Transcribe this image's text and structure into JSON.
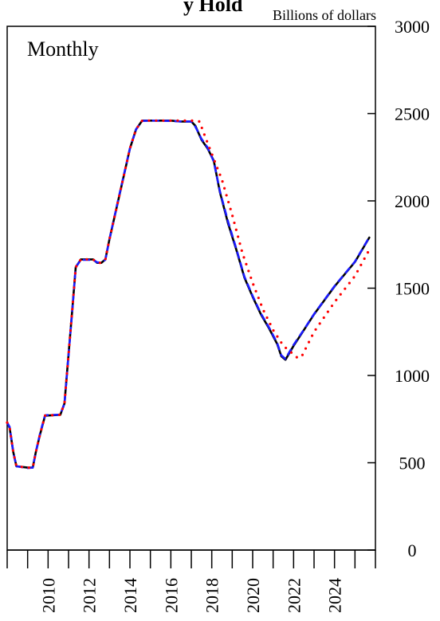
{
  "chart_data": {
    "type": "line",
    "title": "y Hold",
    "period_label": "Monthly",
    "y_unit_label": "Billions of dollars",
    "ylim": [
      0,
      3000
    ],
    "y_ticks": [
      0,
      500,
      1000,
      1500,
      2000,
      2500,
      3000
    ],
    "xlim": [
      2008.0,
      2026.0
    ],
    "x_tick_labels": [
      "2010",
      "2012",
      "2014",
      "2016",
      "2018",
      "2020",
      "2022",
      "2024"
    ],
    "grid": false,
    "series": [
      {
        "color": "#000000",
        "style": "solid",
        "points": [
          [
            2008.0,
            730
          ],
          [
            2008.12,
            700
          ],
          [
            2008.3,
            560
          ],
          [
            2008.45,
            480
          ],
          [
            2009.0,
            472
          ],
          [
            2009.25,
            472
          ],
          [
            2009.4,
            560
          ],
          [
            2009.6,
            660
          ],
          [
            2009.85,
            770
          ],
          [
            2010.6,
            775
          ],
          [
            2010.8,
            840
          ],
          [
            2010.95,
            1050
          ],
          [
            2011.2,
            1400
          ],
          [
            2011.35,
            1620
          ],
          [
            2011.6,
            1665
          ],
          [
            2012.2,
            1665
          ],
          [
            2012.4,
            1645
          ],
          [
            2012.6,
            1645
          ],
          [
            2012.8,
            1665
          ],
          [
            2013.0,
            1780
          ],
          [
            2013.5,
            2040
          ],
          [
            2014.0,
            2300
          ],
          [
            2014.3,
            2410
          ],
          [
            2014.6,
            2460
          ],
          [
            2015.0,
            2460
          ],
          [
            2015.6,
            2460
          ],
          [
            2016.0,
            2460
          ],
          [
            2016.5,
            2455
          ],
          [
            2017.0,
            2455
          ],
          [
            2017.2,
            2430
          ],
          [
            2017.5,
            2350
          ],
          [
            2017.8,
            2300
          ],
          [
            2018.1,
            2230
          ],
          [
            2018.4,
            2050
          ],
          [
            2018.8,
            1870
          ],
          [
            2019.2,
            1720
          ],
          [
            2019.6,
            1560
          ],
          [
            2020.0,
            1450
          ],
          [
            2020.4,
            1350
          ],
          [
            2020.8,
            1270
          ],
          [
            2021.2,
            1180
          ],
          [
            2021.4,
            1110
          ],
          [
            2021.6,
            1090
          ],
          [
            2022.0,
            1170
          ],
          [
            2022.5,
            1260
          ],
          [
            2023.0,
            1350
          ],
          [
            2024.0,
            1510
          ],
          [
            2025.0,
            1650
          ],
          [
            2025.7,
            1790
          ]
        ]
      },
      {
        "color": "#1a1aff",
        "style": "dashed",
        "points": [
          [
            2008.0,
            730
          ],
          [
            2008.12,
            705
          ],
          [
            2008.3,
            560
          ],
          [
            2008.45,
            480
          ],
          [
            2009.0,
            470
          ],
          [
            2009.25,
            472
          ],
          [
            2009.4,
            560
          ],
          [
            2009.6,
            665
          ],
          [
            2009.85,
            772
          ],
          [
            2010.6,
            776
          ],
          [
            2010.8,
            840
          ],
          [
            2010.95,
            1045
          ],
          [
            2011.2,
            1395
          ],
          [
            2011.35,
            1620
          ],
          [
            2011.6,
            1662
          ],
          [
            2012.2,
            1662
          ],
          [
            2012.4,
            1648
          ],
          [
            2012.6,
            1645
          ],
          [
            2012.8,
            1663
          ],
          [
            2013.0,
            1780
          ],
          [
            2013.5,
            2045
          ],
          [
            2014.0,
            2300
          ],
          [
            2014.3,
            2410
          ],
          [
            2014.6,
            2458
          ],
          [
            2015.0,
            2460
          ],
          [
            2016.0,
            2458
          ],
          [
            2016.5,
            2455
          ],
          [
            2017.0,
            2455
          ],
          [
            2017.2,
            2425
          ],
          [
            2017.5,
            2355
          ],
          [
            2017.8,
            2305
          ],
          [
            2018.1,
            2225
          ],
          [
            2018.4,
            2055
          ],
          [
            2018.8,
            1880
          ],
          [
            2019.2,
            1725
          ],
          [
            2019.6,
            1565
          ],
          [
            2020.0,
            1455
          ],
          [
            2020.4,
            1355
          ],
          [
            2020.8,
            1275
          ],
          [
            2021.2,
            1185
          ],
          [
            2021.4,
            1115
          ],
          [
            2021.6,
            1095
          ],
          [
            2022.0,
            1175
          ],
          [
            2022.5,
            1262
          ],
          [
            2023.0,
            1352
          ],
          [
            2024.0,
            1512
          ],
          [
            2025.0,
            1652
          ],
          [
            2025.7,
            1792
          ]
        ]
      },
      {
        "color": "#ff0000",
        "style": "dotted",
        "points": [
          [
            2008.0,
            730
          ],
          [
            2008.12,
            700
          ],
          [
            2008.3,
            560
          ],
          [
            2008.45,
            480
          ],
          [
            2009.0,
            472
          ],
          [
            2009.25,
            472
          ],
          [
            2009.4,
            560
          ],
          [
            2009.6,
            660
          ],
          [
            2009.85,
            770
          ],
          [
            2010.6,
            775
          ],
          [
            2010.8,
            840
          ],
          [
            2010.95,
            1050
          ],
          [
            2011.2,
            1400
          ],
          [
            2011.35,
            1620
          ],
          [
            2011.6,
            1665
          ],
          [
            2012.2,
            1665
          ],
          [
            2012.4,
            1645
          ],
          [
            2012.6,
            1645
          ],
          [
            2012.8,
            1665
          ],
          [
            2013.0,
            1780
          ],
          [
            2013.5,
            2040
          ],
          [
            2014.0,
            2300
          ],
          [
            2014.3,
            2410
          ],
          [
            2014.6,
            2460
          ],
          [
            2015.0,
            2460
          ],
          [
            2016.0,
            2460
          ],
          [
            2017.0,
            2460
          ],
          [
            2017.4,
            2455
          ],
          [
            2017.7,
            2360
          ],
          [
            2018.0,
            2270
          ],
          [
            2018.5,
            2120
          ],
          [
            2019.0,
            1920
          ],
          [
            2019.5,
            1700
          ],
          [
            2020.0,
            1530
          ],
          [
            2020.5,
            1380
          ],
          [
            2021.0,
            1260
          ],
          [
            2021.5,
            1170
          ],
          [
            2021.8,
            1140
          ],
          [
            2022.2,
            1100
          ],
          [
            2022.4,
            1110
          ],
          [
            2022.7,
            1180
          ],
          [
            2023.0,
            1250
          ],
          [
            2024.0,
            1420
          ],
          [
            2025.0,
            1570
          ],
          [
            2025.7,
            1720
          ]
        ]
      }
    ]
  }
}
